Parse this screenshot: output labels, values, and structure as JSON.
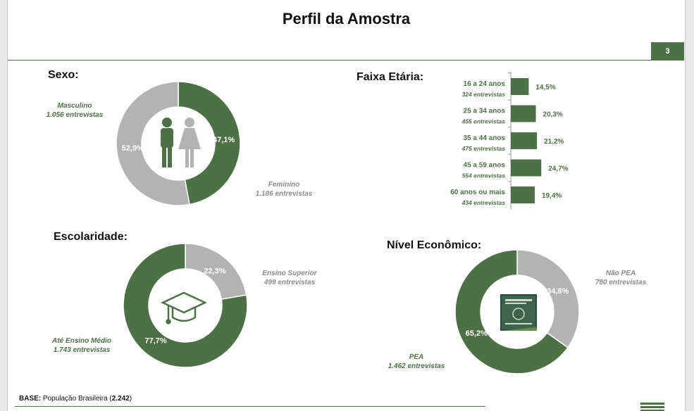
{
  "page": {
    "title": "Perfil da Amostra",
    "page_number": "3",
    "base_label": "BASE:",
    "base_text": "População Brasileira",
    "base_count": "2.242"
  },
  "colors": {
    "green": "#4e7047",
    "grey": "#b3b3b3",
    "dark_grey": "#8a8a8a"
  },
  "icons": {
    "sexo": "male-female-icon",
    "escolaridade": "graduation-cap-icon",
    "nivel": "work-card-icon"
  },
  "sexo": {
    "title": "Sexo:",
    "masculino_label": "Masculino",
    "masculino_count": "1.056 entrevistas",
    "feminino_label": "Feminino",
    "feminino_count": "1.186 entrevistas"
  },
  "faixa": {
    "title": "Faixa Etária:"
  },
  "escolaridade": {
    "title": "Escolaridade:",
    "superior_label": "Ensino Superior",
    "superior_count": "499 entrevistas",
    "medio_label": "Até Ensino Médio",
    "medio_count": "1.743 entrevistas"
  },
  "nivel": {
    "title": "Nível Econômico:",
    "nao_pea_label": "Não PEA",
    "nao_pea_count": "780 entrevistas",
    "pea_label": "PEA",
    "pea_count": "1.462 entrevistas"
  },
  "chart_data": [
    {
      "type": "pie",
      "title": "Sexo:",
      "categories": [
        "Masculino",
        "Feminino"
      ],
      "values": [
        47.1,
        52.9
      ],
      "value_labels": [
        "47,1%",
        "52,9%"
      ],
      "counts": [
        "1.056 entrevistas",
        "1.186 entrevistas"
      ],
      "colors": [
        "#4e7047",
        "#b3b3b3"
      ]
    },
    {
      "type": "bar",
      "title": "Faixa Etária:",
      "categories": [
        "16 a 24 anos",
        "25 a 34 anos",
        "35 a 44 anos",
        "45 a 59 anos",
        "60 anos ou mais"
      ],
      "values": [
        14.5,
        20.3,
        21.2,
        24.7,
        19.4
      ],
      "value_labels": [
        "14,5%",
        "20,3%",
        "21,2%",
        "24,7%",
        "19,4%"
      ],
      "counts": [
        "324 entrevistas",
        "455 entrevistas",
        "475 entrevistas",
        "554 entrevistas",
        "434 entrevistas"
      ],
      "color": "#4e7047"
    },
    {
      "type": "pie",
      "title": "Escolaridade:",
      "categories": [
        "Ensino Superior",
        "Até Ensino Médio"
      ],
      "values": [
        22.3,
        77.7
      ],
      "value_labels": [
        "22,3%",
        "77,7%"
      ],
      "counts": [
        "499 entrevistas",
        "1.743 entrevistas"
      ],
      "colors": [
        "#b3b3b3",
        "#4e7047"
      ]
    },
    {
      "type": "pie",
      "title": "Nível Econômico:",
      "categories": [
        "Não PEA",
        "PEA"
      ],
      "values": [
        34.8,
        65.2
      ],
      "value_labels": [
        "34,8%",
        "65,2%"
      ],
      "counts": [
        "780 entrevistas",
        "1.462 entrevistas"
      ],
      "colors": [
        "#b3b3b3",
        "#4e7047"
      ]
    }
  ]
}
